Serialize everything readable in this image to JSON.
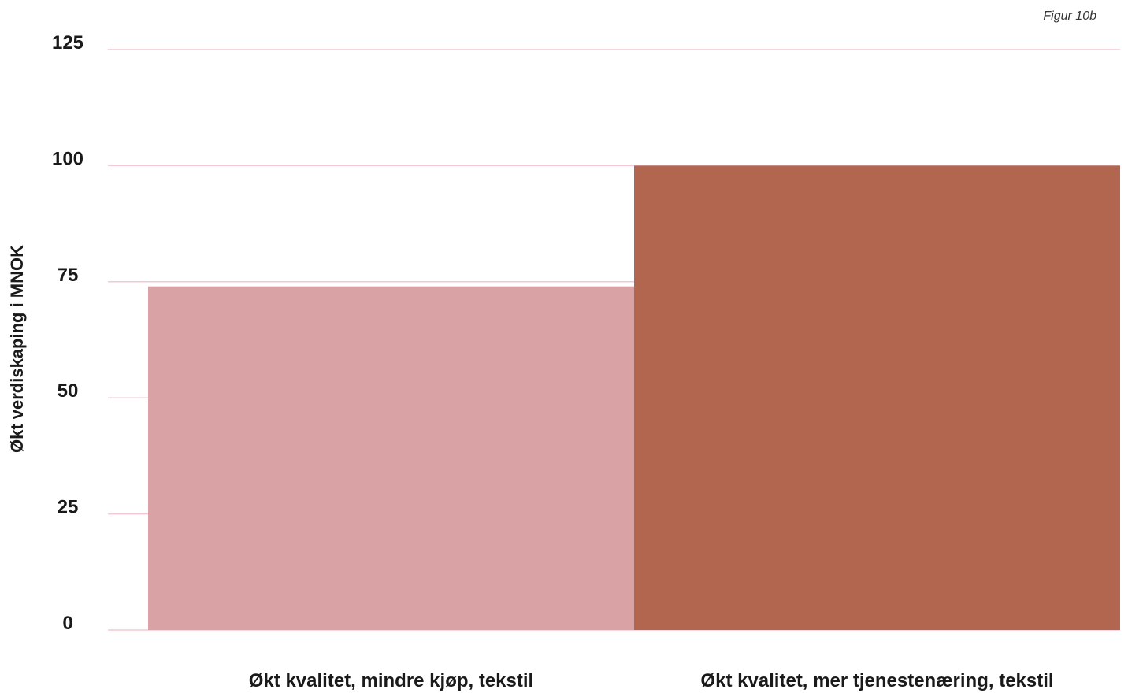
{
  "figure_note": "Figur 10b",
  "chart_data": {
    "type": "bar",
    "categories": [
      "Økt kvalitet, mindre kjøp, tekstil",
      "Økt kvalitet, mer tjenestenæring, tekstil"
    ],
    "values": [
      74,
      100
    ],
    "ylabel": "Økt verdiskaping i MNOK",
    "xlabel": "",
    "ylim": [
      0,
      125
    ],
    "yticks": [
      0,
      25,
      50,
      75,
      100,
      125
    ],
    "grid": true,
    "colors": {
      "bars": [
        "#d9a2a5",
        "#b3664f"
      ],
      "grid": "#f2c9d2",
      "text": "#1a1a1a"
    }
  }
}
